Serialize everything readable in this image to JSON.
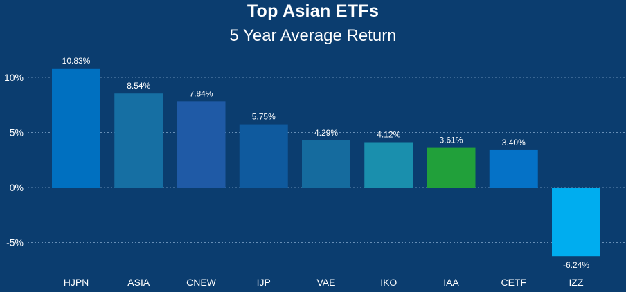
{
  "chart_data": {
    "type": "bar",
    "title": "Top Asian ETFs",
    "subtitle": "5 Year Average Return",
    "xlabel": "",
    "ylabel": "",
    "categories": [
      "HJPN",
      "ASIA",
      "CNEW",
      "IJP",
      "VAE",
      "IKO",
      "IAA",
      "CETF",
      "IZZ"
    ],
    "values": [
      10.83,
      8.54,
      7.84,
      5.75,
      4.29,
      4.12,
      3.61,
      3.4,
      -6.24
    ],
    "data_labels": [
      "10.83%",
      "8.54%",
      "7.84%",
      "5.75%",
      "4.29%",
      "4.12%",
      "3.61%",
      "3.40%",
      "-6.24%"
    ],
    "bar_colors": [
      "#0070c0",
      "#166fa3",
      "#1f5aa6",
      "#0f5a9e",
      "#156b9e",
      "#1a8fad",
      "#21a03a",
      "#0572c7",
      "#00adef"
    ],
    "y_ticks": [
      10,
      5,
      0,
      -5
    ],
    "y_tick_labels": [
      "10%",
      "5%",
      "0%",
      "-5%"
    ],
    "ylim": [
      -6.24,
      10.83
    ],
    "grid": true,
    "legend": "none"
  },
  "colors": {
    "background": "#0b3d6f",
    "text": "#ffffff",
    "gridline": "#8fb3d6"
  }
}
